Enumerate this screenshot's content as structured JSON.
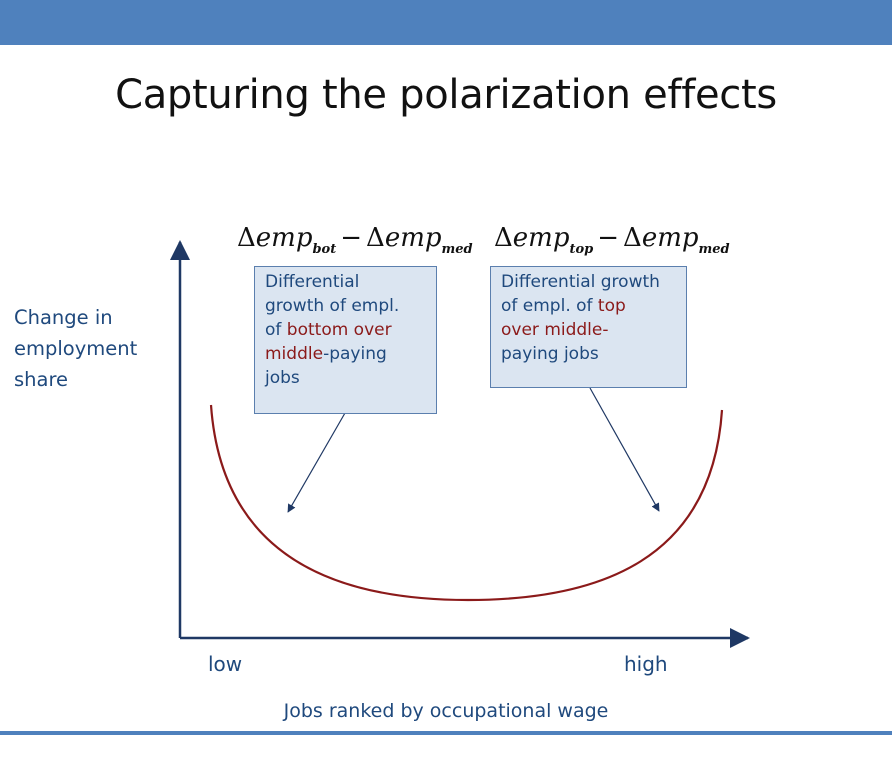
{
  "slide": {
    "title": "Capturing the polarization effects"
  },
  "axes": {
    "y_label_lines": [
      "Change in",
      "employment",
      "share"
    ],
    "x_tick_low": "low",
    "x_tick_high": "high",
    "x_label": "Jobs ranked by occupational wage"
  },
  "formulas": {
    "left": {
      "delta": "Δ",
      "term1": "emp",
      "sub1": "bot",
      "minus": "−",
      "term2": "emp",
      "sub2": "med"
    },
    "right": {
      "delta": "Δ",
      "term1": "emp",
      "sub1": "top",
      "minus": "−",
      "term2": "emp",
      "sub2": "med"
    }
  },
  "callouts": {
    "left": {
      "line1": "Differential",
      "line2": "growth of empl.",
      "line3_pre": "of ",
      "line3_hl": "bottom over",
      "line4_hl": "middle",
      "line4_post": "-paying",
      "line5": "jobs"
    },
    "right": {
      "line1": "Differential growth",
      "line2_pre": "of empl. of ",
      "line2_hl": "top",
      "line3_hl": "over middle-",
      "line4": "paying jobs"
    }
  },
  "colors": {
    "header_bar": "#4f81bd",
    "curve": "#8b1a1a",
    "axis": "#1f3864",
    "callout_fill": "#dbe5f1",
    "callout_border": "#5b7fae",
    "text_blue": "#1f497d",
    "highlight": "#8b1a1a"
  }
}
